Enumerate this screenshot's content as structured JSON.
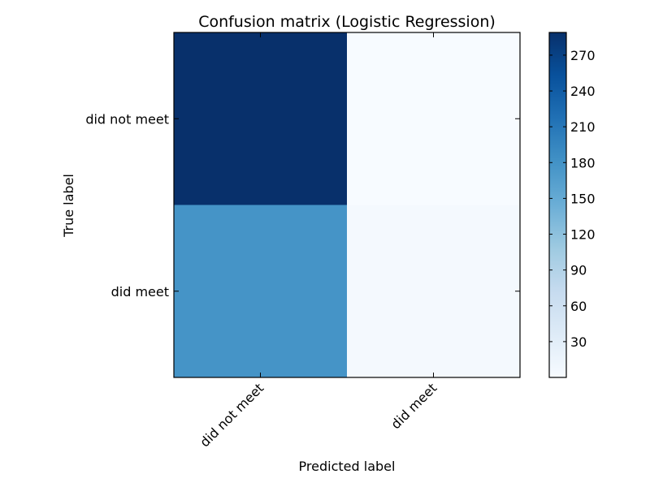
{
  "chart_data": {
    "type": "heatmap",
    "title": "Confusion matrix (Logistic Regression)",
    "xlabel": "Predicted label",
    "ylabel": "True label",
    "row_labels": [
      "did not meet",
      "did meet"
    ],
    "col_labels": [
      "did not meet",
      "did meet"
    ],
    "values": [
      [
        289,
        0
      ],
      [
        178,
        5
      ]
    ],
    "colormap": "Blues",
    "colorbar": {
      "ticks": [
        30,
        60,
        90,
        120,
        150,
        180,
        210,
        240,
        270
      ],
      "range": [
        0,
        289
      ]
    }
  }
}
